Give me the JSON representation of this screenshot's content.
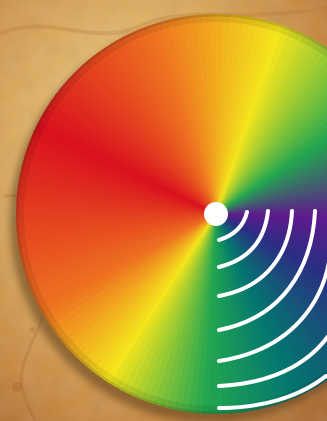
{
  "illustration": {
    "background_icon": "parchment-texture",
    "main_icon": "spectrum-color-wheel",
    "overlay_icon": "signal-waves",
    "colors": {
      "parchment_light": "#f0cf8f",
      "parchment_mid": "#d9a75c",
      "parchment_dark": "#b9783a",
      "red": "#d9101e",
      "orange": "#ee7220",
      "yellow": "#f4e51d",
      "green": "#22a64f",
      "teal": "#03786f",
      "indigo": "#2a2e83",
      "violet": "#5f1a8d",
      "hub": "#ffffff",
      "waves": "#ffffff",
      "shadow": "#6b4b25"
    }
  }
}
